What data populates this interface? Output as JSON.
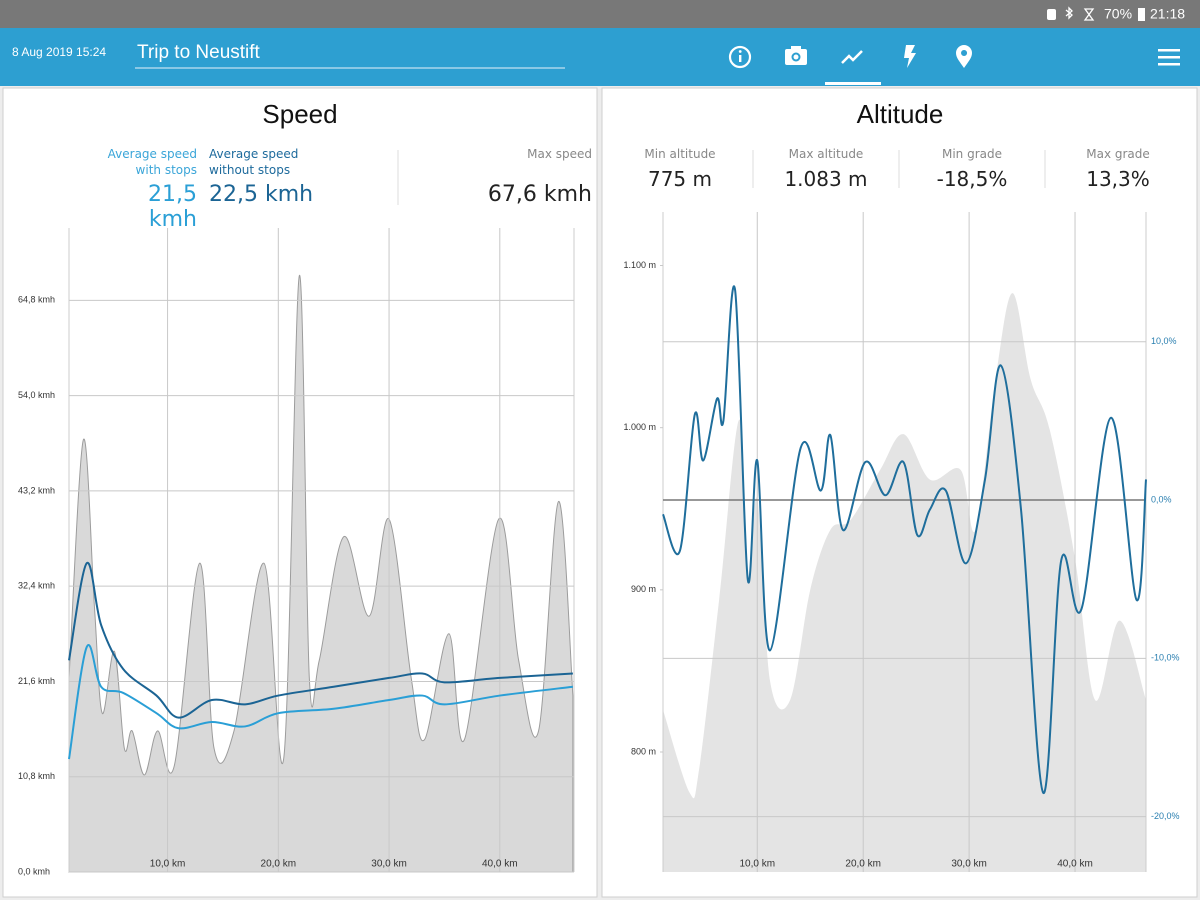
{
  "status_bar": {
    "battery": "70%",
    "time": "21:18"
  },
  "header": {
    "date": "8 Aug 2019 15:24",
    "title": "Trip to Neustift"
  },
  "chart_data": [
    {
      "type": "line",
      "title": "Speed",
      "stats": [
        {
          "label": "Average speed with stops",
          "value": "21,5 kmh"
        },
        {
          "label": "Average speed without stops",
          "value": "22,5 kmh"
        },
        {
          "label": "Max speed",
          "value": "67,6 kmh"
        }
      ],
      "xlim": [
        1.1,
        46.7
      ],
      "xticks": [
        {
          "value": 10,
          "label": "10,0 km"
        },
        {
          "value": 20,
          "label": "20,0 km"
        },
        {
          "value": 30,
          "label": "30,0 km"
        },
        {
          "value": 40,
          "label": "40,0 km"
        }
      ],
      "ylim": [
        0,
        73
      ],
      "yticks": [
        {
          "value": 0,
          "label": "0,0 kmh"
        },
        {
          "value": 10.8,
          "label": "10,8 kmh"
        },
        {
          "value": 21.6,
          "label": "21,6 kmh"
        },
        {
          "value": 32.4,
          "label": "32,4 kmh"
        },
        {
          "value": 43.2,
          "label": "43,2 kmh"
        },
        {
          "value": 54.0,
          "label": "54,0 kmh"
        },
        {
          "value": 64.8,
          "label": "64,8 kmh"
        }
      ],
      "grid_axis": "y",
      "series": [
        {
          "style": "area",
          "color": "#d9d9d9",
          "edge_color": "#9c9c9c",
          "x": [
            1.1,
            2.4,
            3.4,
            4.1,
            5.2,
            6.1,
            6.8,
            7.9,
            9.1,
            10.6,
            12.9,
            14.2,
            16.0,
            18.7,
            20.5,
            21.9,
            22.8,
            23.7,
            25.9,
            28.2,
            30.0,
            32.0,
            33.2,
            35.4,
            36.8,
            39.9,
            41.7,
            43.5,
            45.3,
            46.6
          ],
          "values": [
            22,
            49,
            30,
            18,
            25,
            14,
            16,
            11,
            16,
            12,
            35,
            14,
            16,
            35,
            13,
            67.6,
            22,
            24,
            38,
            29,
            40,
            22,
            15,
            27,
            15,
            40,
            24,
            16,
            42,
            20
          ]
        },
        {
          "style": "line",
          "color": "#2a9fd6",
          "x": [
            1.1,
            2.7,
            4,
            6,
            9,
            11,
            14,
            17,
            20,
            25,
            30,
            33,
            35,
            40,
            46.6
          ],
          "values": [
            12.8,
            25.5,
            21,
            20.3,
            18,
            16.3,
            17,
            16.5,
            18,
            18.5,
            19.5,
            20,
            19,
            20,
            21
          ]
        },
        {
          "style": "line",
          "color": "#1b6494",
          "x": [
            1.1,
            2.7,
            4,
            6,
            9,
            11,
            14,
            17,
            20,
            25,
            30,
            33,
            35,
            40,
            46.6
          ],
          "values": [
            24,
            35,
            28,
            23,
            20,
            17.5,
            19.5,
            19,
            20,
            21,
            22,
            22.5,
            21.5,
            22,
            22.5
          ]
        }
      ]
    },
    {
      "type": "line",
      "title": "Altitude",
      "stats": [
        {
          "label": "Min altitude",
          "value": "775 m"
        },
        {
          "label": "Max altitude",
          "value": "1.083 m"
        },
        {
          "label": "Min grade",
          "value": "-18,5%"
        },
        {
          "label": "Max grade",
          "value": "13,3%"
        }
      ],
      "xlim": [
        1.1,
        46.7
      ],
      "xticks": [
        {
          "value": 10,
          "label": "10,0 km"
        },
        {
          "value": 20,
          "label": "20,0 km"
        },
        {
          "value": 30,
          "label": "30,0 km"
        },
        {
          "value": 40,
          "label": "40,0 km"
        }
      ],
      "ylim": [
        726,
        1133
      ],
      "yticks": [
        {
          "value": 800,
          "label": "800 m"
        },
        {
          "value": 900,
          "label": "900 m"
        },
        {
          "value": 1000,
          "label": "1.000 m"
        },
        {
          "value": 1100,
          "label": "1.100 m"
        }
      ],
      "y2lim": [
        -23.5,
        18.2
      ],
      "y2ticks": [
        {
          "value": -20,
          "label": "-20,0%"
        },
        {
          "value": -10,
          "label": "-10,0%"
        },
        {
          "value": 0,
          "label": "0,0%"
        },
        {
          "value": 10,
          "label": "10,0%"
        }
      ],
      "grid_axis": "y2",
      "series": [
        {
          "style": "area",
          "color": "#e4e4e4",
          "x": [
            1.1,
            3.6,
            4.5,
            6.4,
            8.3,
            9.1,
            10.0,
            11.2,
            13.1,
            15.0,
            16.9,
            18.8,
            21.6,
            23.8,
            26.3,
            29.2,
            30.6,
            32.5,
            34.1,
            35.8,
            37.6,
            40.0,
            41.9,
            44.2,
            46.7
          ],
          "values": [
            826,
            775,
            789,
            894,
            1005,
            906,
            956,
            844,
            832,
            900,
            937,
            943,
            974,
            996,
            968,
            974,
            937,
            1030,
            1083,
            1030,
            999,
            919,
            832,
            881,
            832
          ]
        },
        {
          "style": "line",
          "color": "#1f6e9c",
          "axis": "y2",
          "x": [
            1.1,
            2.7,
            4.1,
            4.9,
            6.2,
            6.8,
            7.9,
            9.1,
            10.0,
            11.2,
            14.1,
            16.0,
            16.9,
            18.1,
            20.2,
            22.1,
            23.8,
            25.1,
            26.3,
            27.8,
            29.7,
            31.5,
            33.0,
            34.9,
            37.0,
            38.7,
            40.6,
            43.4,
            45.8,
            46.7
          ],
          "values": [
            -0.9,
            -3.2,
            5.4,
            2.5,
            6.4,
            5.0,
            13.3,
            -5.0,
            2.5,
            -9.5,
            3.3,
            0.6,
            4.1,
            -1.9,
            2.4,
            0.3,
            2.4,
            -2.2,
            -0.6,
            0.6,
            -4.0,
            1.3,
            8.5,
            -0.6,
            -18.5,
            -3.8,
            -6.9,
            5.2,
            -6.3,
            1.3
          ]
        }
      ]
    }
  ]
}
